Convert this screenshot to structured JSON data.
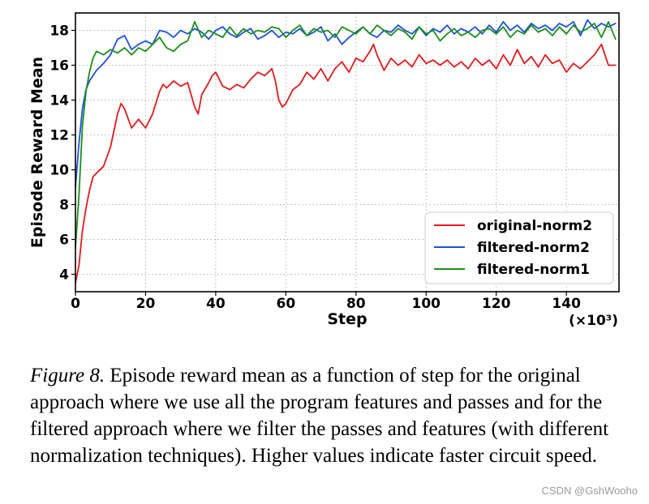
{
  "chart_data": {
    "type": "line",
    "title": "",
    "xlabel": "Step",
    "x_multiplier_label": "(×10³)",
    "ylabel": "Episode Reward Mean",
    "xlim": [
      0,
      155
    ],
    "ylim": [
      3,
      19
    ],
    "x_ticks": [
      0,
      20,
      40,
      60,
      80,
      100,
      120,
      140
    ],
    "y_ticks": [
      4,
      6,
      8,
      10,
      12,
      14,
      16,
      18
    ],
    "grid": true,
    "grid_style": "dotted",
    "legend_position": "lower-right",
    "series": [
      {
        "name": "original-norm2",
        "color": "#e41a1c",
        "x": [
          0,
          1,
          2,
          3,
          4,
          5,
          6,
          8,
          10,
          12,
          13,
          14,
          16,
          18,
          20,
          22,
          24,
          25,
          26,
          28,
          30,
          32,
          34,
          35,
          36,
          38,
          39,
          40,
          41,
          42,
          44,
          46,
          48,
          50,
          52,
          54,
          56,
          57,
          58,
          59,
          60,
          62,
          64,
          66,
          68,
          70,
          72,
          74,
          76,
          78,
          80,
          82,
          84,
          85,
          86,
          88,
          90,
          92,
          94,
          96,
          98,
          100,
          102,
          104,
          106,
          108,
          110,
          112,
          114,
          116,
          118,
          120,
          122,
          124,
          126,
          128,
          130,
          132,
          134,
          136,
          138,
          140,
          142,
          144,
          146,
          148,
          150,
          152,
          154
        ],
        "values": [
          3.5,
          4.5,
          6.5,
          7.8,
          8.8,
          9.6,
          9.8,
          10.2,
          11.3,
          13.2,
          13.8,
          13.5,
          12.4,
          12.9,
          12.4,
          13.2,
          14.5,
          14.9,
          14.7,
          15.1,
          14.8,
          15.0,
          13.6,
          13.2,
          14.3,
          15.0,
          15.4,
          15.6,
          15.2,
          14.8,
          14.6,
          14.9,
          14.7,
          15.2,
          15.6,
          15.4,
          15.8,
          15.1,
          14.0,
          13.6,
          13.8,
          14.6,
          14.9,
          15.6,
          15.2,
          15.8,
          15.1,
          15.8,
          16.2,
          15.6,
          16.4,
          16.2,
          16.8,
          17.2,
          16.6,
          15.7,
          16.4,
          16.0,
          16.3,
          15.9,
          16.6,
          16.1,
          16.3,
          16.0,
          16.3,
          15.9,
          16.2,
          15.8,
          16.4,
          16.0,
          16.3,
          15.8,
          16.6,
          16.0,
          16.9,
          16.1,
          16.5,
          15.9,
          16.6,
          16.1,
          16.3,
          15.6,
          16.1,
          15.8,
          16.2,
          16.6,
          17.2,
          16.0,
          16.0
        ]
      },
      {
        "name": "filtered-norm2",
        "color": "#1f4fe0",
        "x": [
          0,
          1,
          2,
          3,
          4,
          5,
          6,
          8,
          10,
          12,
          14,
          16,
          18,
          20,
          22,
          24,
          26,
          28,
          30,
          32,
          34,
          36,
          38,
          40,
          42,
          44,
          46,
          48,
          50,
          52,
          54,
          56,
          58,
          60,
          62,
          64,
          66,
          68,
          70,
          72,
          74,
          76,
          78,
          80,
          82,
          84,
          86,
          88,
          90,
          92,
          94,
          96,
          98,
          100,
          102,
          104,
          106,
          108,
          110,
          112,
          114,
          116,
          118,
          120,
          122,
          124,
          126,
          128,
          130,
          132,
          134,
          136,
          138,
          140,
          142,
          144,
          146,
          148,
          150,
          152,
          154
        ],
        "values": [
          9.0,
          11.5,
          13.5,
          14.6,
          15.1,
          15.4,
          15.7,
          16.1,
          16.6,
          17.5,
          17.7,
          16.9,
          17.2,
          17.4,
          17.2,
          18.0,
          17.9,
          17.6,
          18.0,
          17.8,
          18.1,
          17.9,
          17.5,
          18.0,
          18.2,
          17.8,
          17.6,
          17.9,
          18.1,
          17.5,
          17.7,
          18.0,
          17.6,
          17.9,
          17.8,
          18.1,
          17.7,
          17.9,
          18.2,
          17.4,
          17.8,
          17.2,
          17.6,
          17.9,
          18.2,
          17.8,
          17.6,
          18.0,
          17.9,
          18.3,
          18.0,
          17.8,
          18.2,
          17.7,
          18.1,
          17.9,
          18.3,
          17.8,
          18.1,
          17.9,
          18.2,
          17.8,
          18.3,
          17.9,
          18.5,
          18.0,
          18.3,
          17.9,
          18.4,
          18.1,
          18.3,
          18.0,
          18.4,
          18.2,
          18.5,
          17.7,
          18.6,
          18.1,
          18.4,
          18.2,
          18.4
        ]
      },
      {
        "name": "filtered-norm1",
        "color": "#1a8f1a",
        "x": [
          0,
          1,
          2,
          3,
          4,
          5,
          6,
          8,
          10,
          12,
          14,
          16,
          18,
          20,
          22,
          24,
          26,
          28,
          30,
          32,
          34,
          36,
          38,
          40,
          42,
          44,
          46,
          48,
          50,
          52,
          54,
          56,
          58,
          60,
          62,
          64,
          66,
          68,
          70,
          72,
          74,
          76,
          78,
          80,
          82,
          84,
          86,
          88,
          90,
          92,
          94,
          96,
          98,
          100,
          102,
          104,
          106,
          108,
          110,
          112,
          114,
          116,
          118,
          120,
          122,
          124,
          126,
          128,
          130,
          132,
          134,
          136,
          138,
          140,
          142,
          144,
          146,
          148,
          150,
          152,
          154
        ],
        "values": [
          5.5,
          8.5,
          12.5,
          14.5,
          15.6,
          16.4,
          16.8,
          16.6,
          16.9,
          16.7,
          17.0,
          16.6,
          17.0,
          16.8,
          17.2,
          17.6,
          17.0,
          16.8,
          17.2,
          17.4,
          18.5,
          17.6,
          18.0,
          17.8,
          17.6,
          18.2,
          17.7,
          18.1,
          17.8,
          18.0,
          17.9,
          18.2,
          18.1,
          17.6,
          18.0,
          18.3,
          17.7,
          18.1,
          17.9,
          18.0,
          17.6,
          18.2,
          18.0,
          17.8,
          18.2,
          17.8,
          18.3,
          18.0,
          17.7,
          18.1,
          17.9,
          17.5,
          18.2,
          17.8,
          18.0,
          17.4,
          17.8,
          18.1,
          17.7,
          17.9,
          17.6,
          18.0,
          18.1,
          17.8,
          18.2,
          17.6,
          18.0,
          17.8,
          18.3,
          17.9,
          18.1,
          17.7,
          18.2,
          17.8,
          18.3,
          17.9,
          18.1,
          18.4,
          17.6,
          18.5,
          17.5
        ]
      }
    ]
  },
  "caption": {
    "label": "Figure 8.",
    "text": " Episode reward mean as a function of step for the original approach where we use all the program features and passes and for the filtered approach where we filter the passes and features (with different normalization techniques). Higher values indicate faster circuit speed."
  },
  "watermark": "CSDN @GshWooho"
}
